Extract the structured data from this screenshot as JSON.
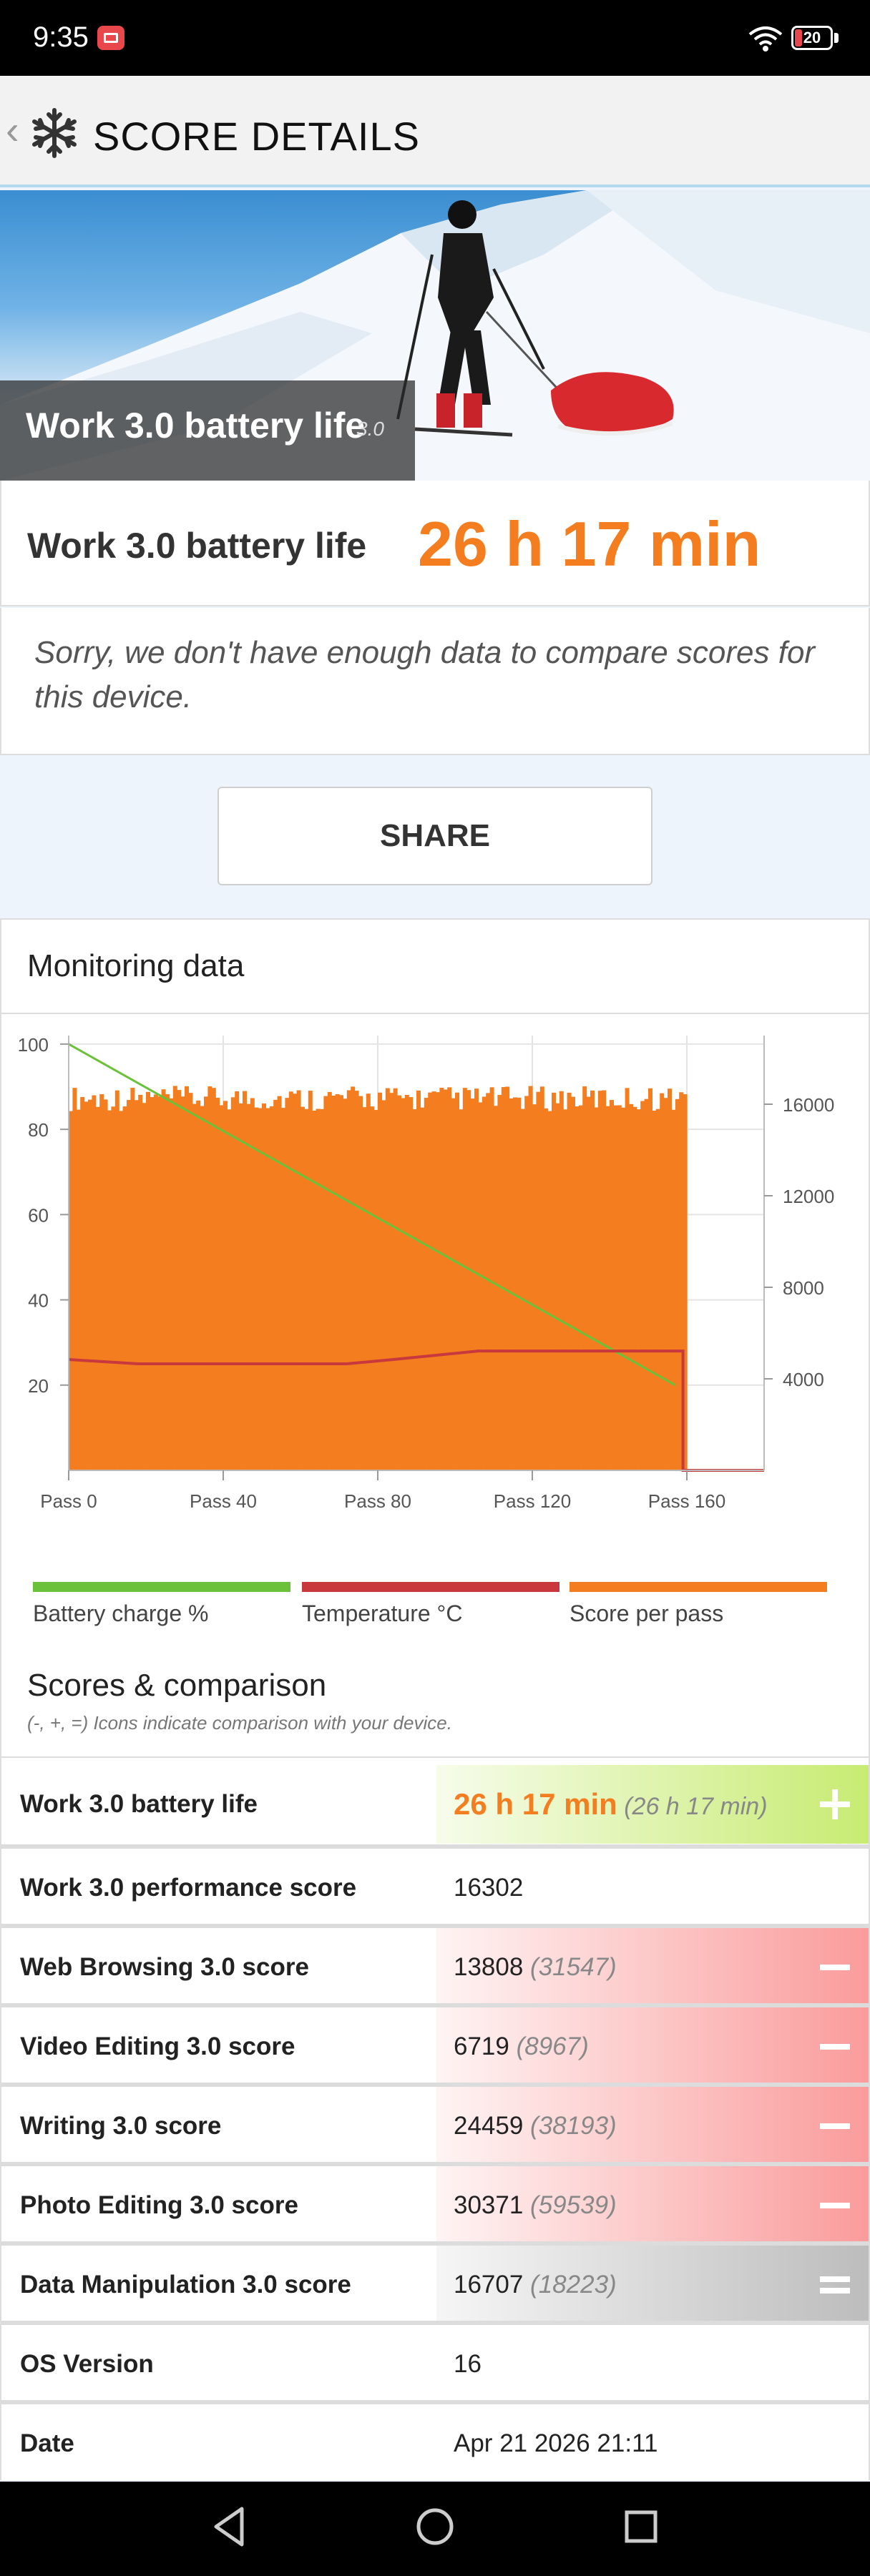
{
  "status_bar": {
    "time": "9:35",
    "battery_level": "20"
  },
  "app_bar": {
    "title": "SCORE DETAILS"
  },
  "hero": {
    "caption": "Work 3.0 battery life",
    "version": "3.0"
  },
  "score": {
    "label": "Work 3.0 battery life",
    "value": "26 h 17 min"
  },
  "notice": "Sorry, we don't have enough data to compare scores for this device.",
  "share_label": "SHARE",
  "monitoring": {
    "title": "Monitoring data",
    "legend": [
      {
        "label": "Battery charge %",
        "color": "#6cc13a"
      },
      {
        "label": "Temperature °C",
        "color": "#c8383c"
      },
      {
        "label": "Score per pass",
        "color": "#f37d1f"
      }
    ]
  },
  "chart_data": {
    "type": "area",
    "x_tick_labels": [
      "Pass 0",
      "Pass 40",
      "Pass 80",
      "Pass 120",
      "Pass 160"
    ],
    "xlim": [
      0,
      180
    ],
    "left_axis": {
      "ticks": [
        20,
        40,
        60,
        80,
        100
      ],
      "ylim": [
        0,
        102
      ]
    },
    "right_axis": {
      "ticks": [
        4000,
        8000,
        12000,
        16000
      ],
      "ylim": [
        0,
        19000
      ]
    },
    "series": [
      {
        "name": "Score per pass",
        "color": "#f37d1f",
        "x_range": [
          0,
          159
        ],
        "typical_value": 16302,
        "min": 15700,
        "max": 16800
      },
      {
        "name": "Battery charge %",
        "color": "#6cc13a",
        "x": [
          0,
          157
        ],
        "y": [
          100,
          20
        ]
      },
      {
        "name": "Temperature °C",
        "color": "#c8383c",
        "x": [
          0,
          18,
          72,
          84,
          106,
          159,
          159,
          180
        ],
        "y": [
          26,
          25,
          25,
          26,
          28,
          28,
          0,
          0
        ]
      }
    ],
    "grid": true
  },
  "scores": {
    "title": "Scores & comparison",
    "subtitle": "(-, +, =) Icons indicate comparison with your device.",
    "rows": [
      {
        "label": "Work 3.0 battery life",
        "value": "26 h 17 min",
        "compare": "(26 h 17 min)",
        "indicator": "plus"
      },
      {
        "label": "Work 3.0 performance score",
        "value": "16302",
        "compare": "",
        "indicator": "none"
      },
      {
        "label": "Web Browsing 3.0 score",
        "value": "13808",
        "compare": "(31547)",
        "indicator": "minus"
      },
      {
        "label": "Video Editing 3.0 score",
        "value": "6719",
        "compare": "(8967)",
        "indicator": "minus"
      },
      {
        "label": "Writing 3.0 score",
        "value": "24459",
        "compare": "(38193)",
        "indicator": "minus"
      },
      {
        "label": "Photo Editing 3.0 score",
        "value": "30371",
        "compare": "(59539)",
        "indicator": "minus"
      },
      {
        "label": "Data Manipulation 3.0 score",
        "value": "16707",
        "compare": "(18223)",
        "indicator": "equal"
      },
      {
        "label": "OS Version",
        "value": "16",
        "compare": "",
        "indicator": "none"
      },
      {
        "label": "Date",
        "value": "Apr 21 2026 21:11",
        "compare": "",
        "indicator": "none"
      }
    ]
  }
}
